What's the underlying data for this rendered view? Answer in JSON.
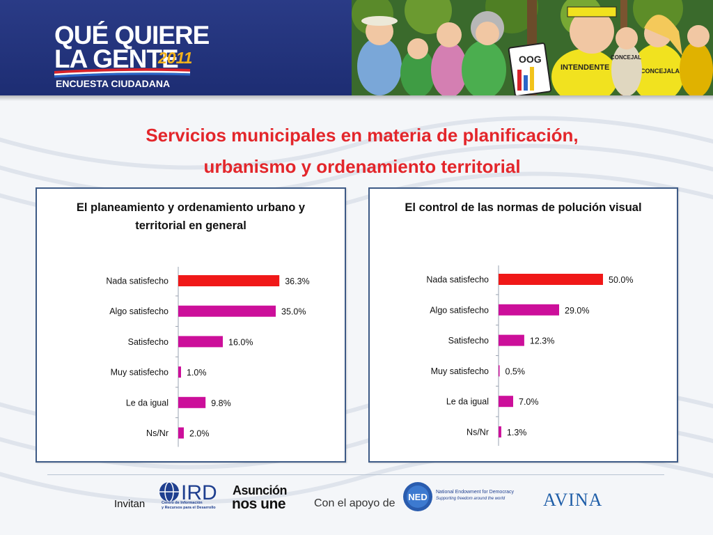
{
  "header": {
    "brand_line1": "QUÉ QUIERE",
    "brand_line2": "LA GENTE",
    "brand_year": "2011",
    "brand_sub": "ENCUESTA CIUDADANA",
    "illustration_signs": [
      "OOG",
      "INTENDENTE",
      "CONCEJALA",
      "CONCEJAL"
    ]
  },
  "title_line1": "Servicios municipales en materia de planificación,",
  "title_line2": "urbanismo y ordenamiento territorial",
  "colors": {
    "title_red": "#e3262b",
    "bar_red": "#f01818",
    "bar_magenta": "#cc0f9a",
    "header_blue": "#23358a",
    "panel_border": "#3d5a86"
  },
  "chart_data": [
    {
      "type": "bar",
      "orientation": "horizontal",
      "title_line1": "El planeamiento y ordenamiento urbano y",
      "title_line2": "territorial en general",
      "categories": [
        "Nada satisfecho",
        "Algo satisfecho",
        "Satisfecho",
        "Muy satisfecho",
        "Le da igual",
        "Ns/Nr"
      ],
      "values": [
        36.3,
        35.0,
        16.0,
        1.0,
        9.8,
        2.0
      ],
      "labels": [
        "36.3%",
        "35.0%",
        "16.0%",
        "1.0%",
        "9.8%",
        "2.0%"
      ],
      "xlim": [
        0,
        60
      ],
      "grid": false,
      "legend": "none",
      "highlight_colors": [
        "#f01818",
        "#cc0f9a",
        "#cc0f9a",
        "#cc0f9a",
        "#cc0f9a",
        "#cc0f9a"
      ]
    },
    {
      "type": "bar",
      "orientation": "horizontal",
      "title_line1": "El control de las normas de  polución visual",
      "title_line2": "",
      "categories": [
        "Nada satisfecho",
        "Algo satisfecho",
        "Satisfecho",
        "Muy satisfecho",
        "Le da igual",
        "Ns/Nr"
      ],
      "values": [
        50.0,
        29.0,
        12.3,
        0.5,
        7.0,
        1.3
      ],
      "labels": [
        "50.0%",
        "29.0%",
        "12.3%",
        "0.5%",
        "7.0%",
        "1.3%"
      ],
      "xlim": [
        0,
        80
      ],
      "grid": false,
      "legend": "none",
      "highlight_colors": [
        "#f01818",
        "#cc0f9a",
        "#cc0f9a",
        "#cc0f9a",
        "#cc0f9a",
        "#cc0f9a"
      ]
    }
  ],
  "footer": {
    "invitan": "Invitan",
    "apoyo": "Con el apoyo de",
    "ird_name": "IRD",
    "ird_sub": "Centro de Información\ny Recursos para el Desarrollo",
    "asuncion_line1": "Asunción",
    "asuncion_line2": "nos une",
    "ned_abbr": "NED",
    "ned_name": "National Endowment for Democracy",
    "ned_tag": "Supporting freedom around the world",
    "avina": "AVINA"
  }
}
